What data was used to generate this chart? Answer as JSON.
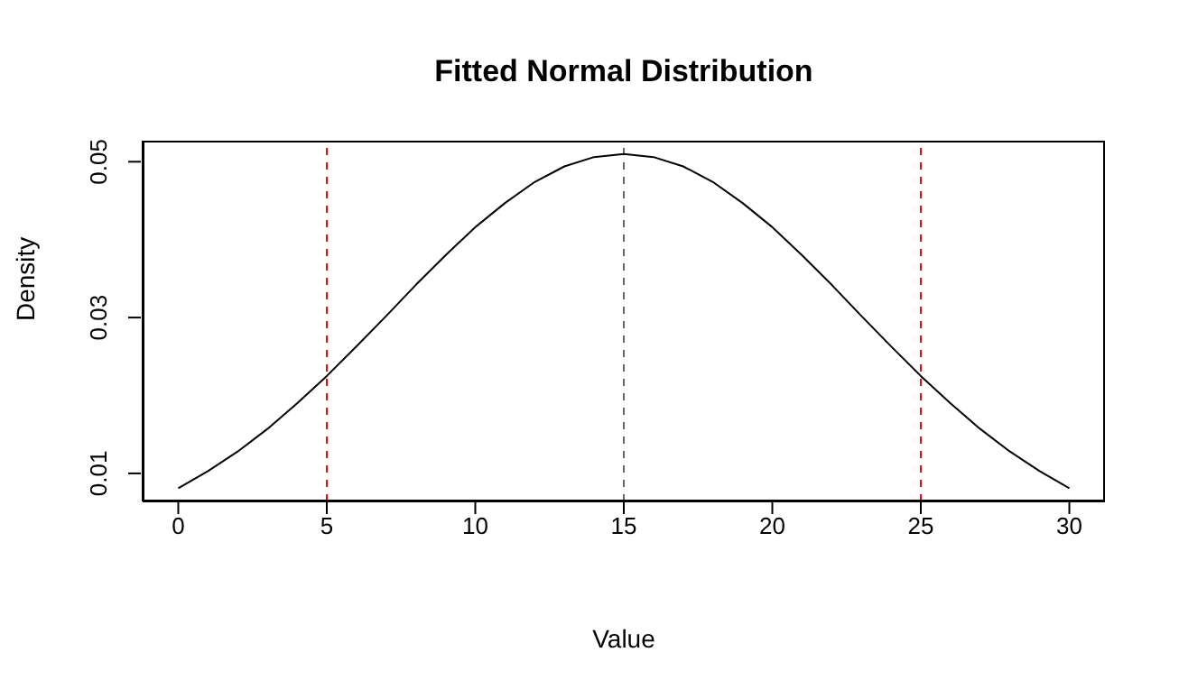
{
  "chart_data": {
    "type": "line",
    "title": "Fitted Normal Distribution",
    "xlabel": "Value",
    "ylabel": "Density",
    "x": [
      0,
      1,
      2,
      3,
      4,
      5,
      6,
      7,
      8,
      9,
      10,
      11,
      12,
      13,
      14,
      15,
      16,
      17,
      18,
      19,
      20,
      21,
      22,
      23,
      24,
      25,
      26,
      27,
      28,
      29,
      30
    ],
    "series": [
      {
        "color": "#000000",
        "values": [
          0.0081,
          0.0103,
          0.0128,
          0.0157,
          0.019,
          0.0225,
          0.0263,
          0.0302,
          0.0342,
          0.038,
          0.0416,
          0.0447,
          0.0474,
          0.0494,
          0.0506,
          0.051,
          0.0506,
          0.0494,
          0.0474,
          0.0447,
          0.0416,
          0.038,
          0.0342,
          0.0302,
          0.0263,
          0.0225,
          0.019,
          0.0157,
          0.0128,
          0.0103,
          0.0081
        ]
      }
    ],
    "xlim": [
      -1.2,
      31.2
    ],
    "xticks": [
      0,
      5,
      10,
      15,
      20,
      25,
      30
    ],
    "ylim": [
      0.0064,
      0.0527
    ],
    "yticks": [
      0.01,
      0.03,
      0.05
    ],
    "ref_lines": [
      {
        "axis": "x",
        "value": 5,
        "color": "#ff0000",
        "line_style": "dashed"
      },
      {
        "axis": "x",
        "value": 15,
        "color": "#666666",
        "line_style": "dashed"
      },
      {
        "axis": "x",
        "value": 25,
        "color": "#ff0000",
        "line_style": "dashed"
      }
    ]
  }
}
